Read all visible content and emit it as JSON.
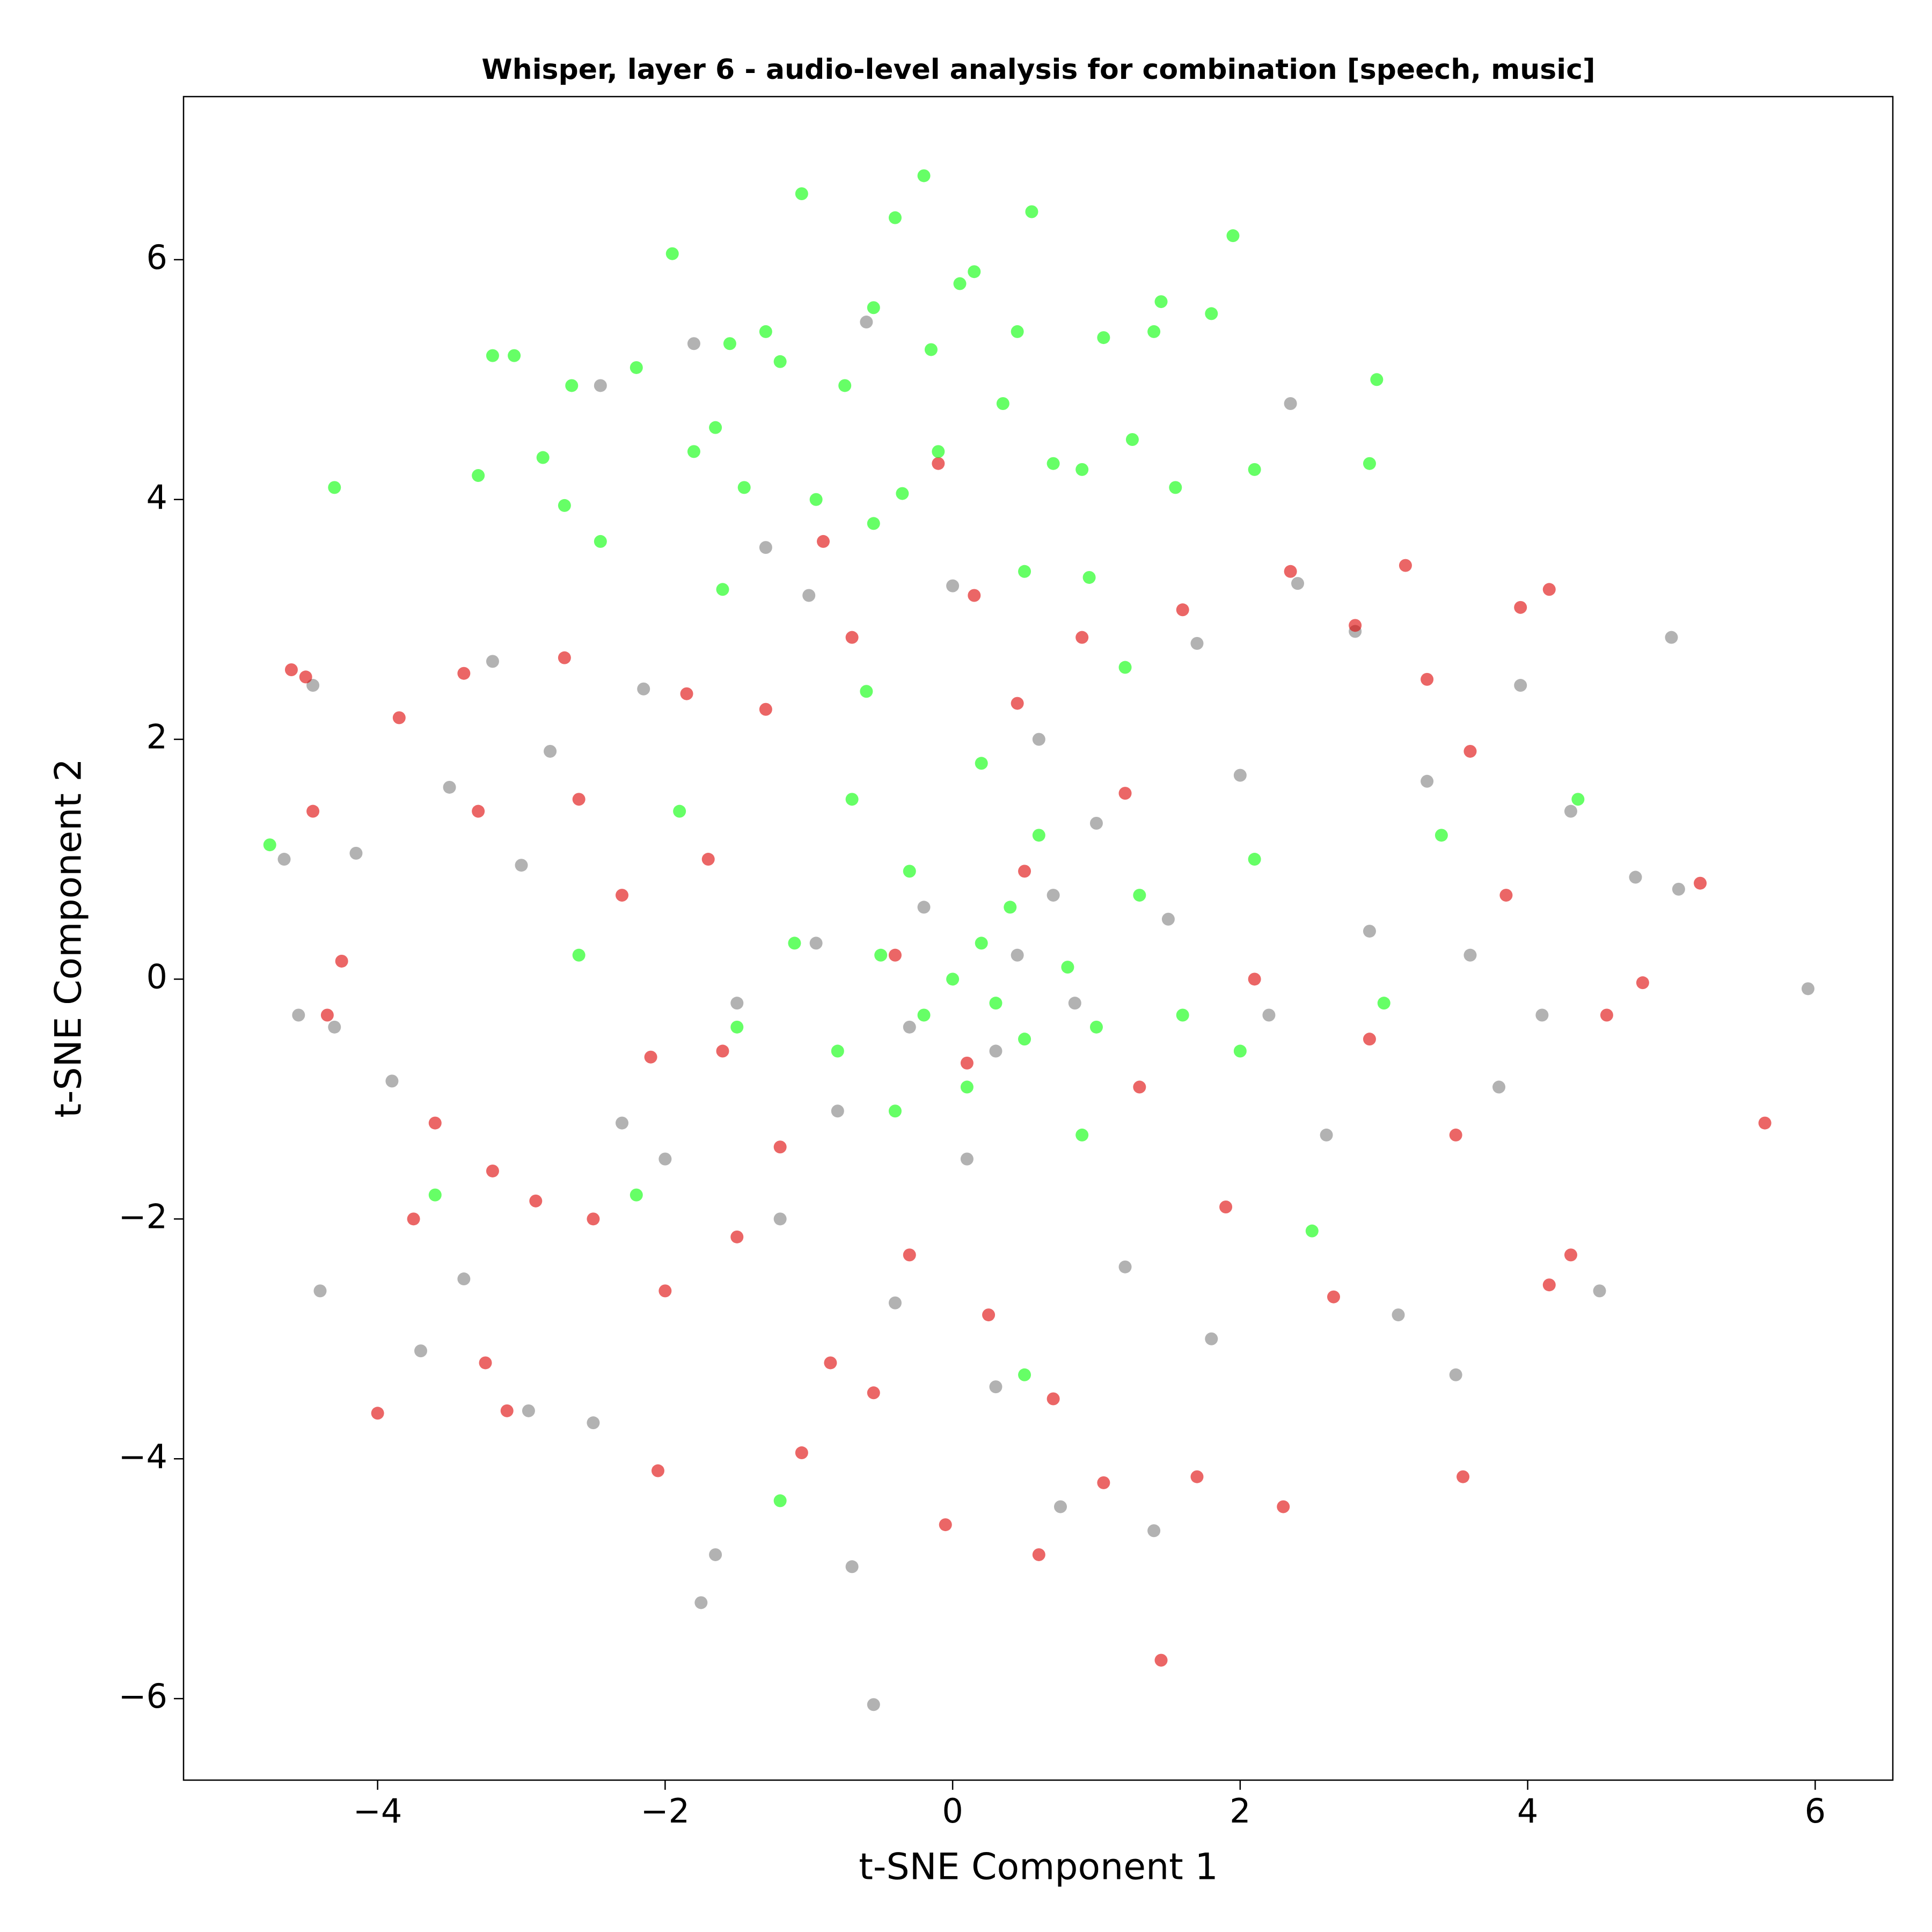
{
  "chart_data": {
    "type": "scatter",
    "title": "Whisper, layer 6 - audio-level analysis for combination [speech, music]",
    "x_label": "t-SNE Component 1",
    "y_label": "t-SNE Component 2",
    "xlim": [
      -5.35,
      6.54
    ],
    "ylim": [
      -6.68,
      7.36
    ],
    "xticks": [
      {
        "value": -4,
        "label": "−4"
      },
      {
        "value": -2,
        "label": "−2"
      },
      0,
      2,
      4,
      6
    ],
    "yticks": [
      {
        "value": -6,
        "label": "−6"
      },
      {
        "value": -4,
        "label": "−4"
      },
      {
        "value": -2,
        "label": "−2"
      },
      0,
      2,
      4,
      6
    ],
    "grid": false,
    "alpha": 0.6,
    "series": [
      {
        "color": "#7f7f7f",
        "x": [
          -4.65,
          -4.55,
          -4.45,
          -4.4,
          -4.3,
          -4.15,
          -3.9,
          -3.7,
          -3.5,
          -3.4,
          -3.2,
          -3.0,
          -2.95,
          -2.8,
          -2.5,
          -2.45,
          -2.3,
          -2.15,
          -2.0,
          -1.8,
          -1.75,
          -1.65,
          -1.5,
          -1.3,
          -1.2,
          -1.0,
          -0.95,
          -0.8,
          -0.7,
          -0.6,
          -0.55,
          -0.4,
          -0.2,
          0.0,
          0.1,
          0.3,
          0.45,
          0.6,
          0.75,
          0.85,
          1.0,
          1.2,
          1.4,
          1.5,
          1.7,
          1.8,
          2.0,
          2.2,
          2.35,
          2.4,
          2.6,
          2.8,
          2.9,
          3.1,
          3.3,
          3.5,
          3.6,
          3.8,
          3.95,
          4.1,
          4.3,
          4.5,
          4.75,
          5.0,
          5.05,
          5.95,
          0.3,
          -0.3,
          0.7
        ],
        "values": [
          1.0,
          -0.3,
          2.45,
          -2.6,
          -0.4,
          1.05,
          -0.85,
          -3.1,
          1.6,
          -2.5,
          2.65,
          0.95,
          -3.6,
          1.9,
          -3.7,
          4.95,
          -1.2,
          2.42,
          -1.5,
          5.3,
          -5.2,
          -4.8,
          -0.2,
          3.6,
          -2.0,
          3.2,
          0.3,
          -1.1,
          -4.9,
          5.48,
          -6.05,
          -2.7,
          0.6,
          3.28,
          -1.5,
          -3.4,
          0.2,
          2.0,
          -4.4,
          -0.2,
          1.3,
          -2.4,
          -4.6,
          0.5,
          2.8,
          -3.0,
          1.7,
          -0.3,
          4.8,
          3.3,
          -1.3,
          2.9,
          0.4,
          -2.8,
          1.65,
          -3.3,
          0.2,
          -0.9,
          2.45,
          -0.3,
          1.4,
          -2.6,
          0.85,
          2.85,
          0.75,
          -0.08,
          -0.6,
          -0.4,
          0.7
        ]
      },
      {
        "color": "#dd0000",
        "x": [
          -4.6,
          -4.5,
          -4.45,
          -4.25,
          -4.35,
          -4.0,
          -3.85,
          -3.75,
          -3.6,
          -3.4,
          -3.3,
          -3.2,
          -3.25,
          -3.1,
          -2.9,
          -2.7,
          -2.6,
          -2.5,
          -2.3,
          -2.1,
          -2.0,
          -2.05,
          -1.85,
          -1.7,
          -1.6,
          -1.5,
          -1.3,
          -1.2,
          -1.05,
          -0.9,
          -0.85,
          -0.7,
          -0.55,
          -0.3,
          -0.1,
          0.15,
          -0.05,
          0.1,
          0.25,
          0.45,
          0.6,
          0.7,
          0.9,
          1.05,
          1.2,
          1.45,
          1.6,
          1.7,
          1.9,
          2.1,
          2.3,
          2.35,
          2.65,
          2.8,
          2.9,
          3.15,
          3.3,
          3.5,
          3.55,
          3.6,
          3.85,
          3.95,
          4.15,
          4.15,
          4.3,
          4.55,
          4.8,
          5.2,
          5.65,
          0.5,
          -0.4,
          1.3
        ],
        "values": [
          2.58,
          2.52,
          1.4,
          0.15,
          -0.3,
          -3.62,
          2.18,
          -2.0,
          -1.2,
          2.55,
          1.4,
          -1.6,
          -3.2,
          -3.6,
          -1.85,
          2.68,
          1.5,
          -2.0,
          0.7,
          -0.65,
          -2.6,
          -4.1,
          2.38,
          1.0,
          -0.6,
          -2.15,
          2.25,
          -1.4,
          -3.95,
          3.65,
          -3.2,
          2.85,
          -3.45,
          -2.3,
          4.3,
          3.2,
          -4.55,
          -0.7,
          -2.8,
          2.3,
          -4.8,
          -3.5,
          2.85,
          -4.2,
          1.55,
          -5.68,
          3.08,
          -4.15,
          -1.9,
          0.0,
          -4.4,
          3.4,
          -2.65,
          2.95,
          -0.5,
          3.45,
          2.5,
          -1.3,
          -4.15,
          1.9,
          0.7,
          3.1,
          3.25,
          -2.55,
          -2.3,
          -0.3,
          -0.03,
          0.8,
          -1.2,
          0.9,
          0.2,
          -0.9
        ]
      },
      {
        "color": "#00ff00",
        "x": [
          -4.3,
          -3.3,
          -3.2,
          -3.05,
          -2.85,
          -2.7,
          -2.65,
          -2.45,
          -2.2,
          -1.95,
          -1.8,
          -1.65,
          -1.55,
          -1.45,
          -1.3,
          -1.2,
          -1.05,
          -0.95,
          -0.75,
          -0.55,
          -0.55,
          -0.4,
          -0.35,
          -0.2,
          -0.15,
          -0.1,
          0.05,
          0.15,
          0.35,
          0.45,
          0.55,
          0.7,
          0.9,
          1.05,
          1.25,
          1.4,
          1.45,
          1.55,
          1.8,
          1.95,
          2.1,
          2.95,
          2.9,
          0.5,
          0.95,
          -1.6,
          0.0,
          0.2,
          -0.2,
          0.5,
          0.4,
          -0.5,
          0.8,
          -0.8,
          1.0,
          0.1,
          -0.3,
          0.6,
          -1.1,
          1.3,
          0.3,
          -0.4,
          0.9,
          -1.5,
          1.6,
          -0.7,
          0.2,
          -1.9,
          2.1,
          -2.2,
          2.5,
          -3.6,
          3.4,
          -4.75,
          4.35,
          -1.2,
          2.0,
          -2.6,
          3.0,
          0.5,
          -0.6,
          1.2
        ],
        "values": [
          4.1,
          4.2,
          5.2,
          5.2,
          4.35,
          3.95,
          4.95,
          3.65,
          5.1,
          6.05,
          4.4,
          4.6,
          5.3,
          4.1,
          5.4,
          5.15,
          6.55,
          4.0,
          4.95,
          5.6,
          3.8,
          6.35,
          4.05,
          6.7,
          5.25,
          4.4,
          5.8,
          5.9,
          4.8,
          5.4,
          6.4,
          4.3,
          4.25,
          5.35,
          4.5,
          5.4,
          5.65,
          4.1,
          5.55,
          6.2,
          4.25,
          5.0,
          4.3,
          3.4,
          3.35,
          3.25,
          0.0,
          0.3,
          -0.3,
          -0.5,
          0.6,
          0.2,
          0.1,
          -0.6,
          -0.4,
          -0.9,
          0.9,
          1.2,
          0.3,
          0.7,
          -0.2,
          -1.1,
          -1.3,
          -0.4,
          -0.3,
          1.5,
          1.8,
          1.4,
          1.0,
          -1.8,
          -2.1,
          -1.8,
          1.2,
          1.12,
          1.5,
          -4.35,
          -0.6,
          0.2,
          -0.2,
          -3.3,
          2.4,
          2.6
        ]
      }
    ]
  }
}
